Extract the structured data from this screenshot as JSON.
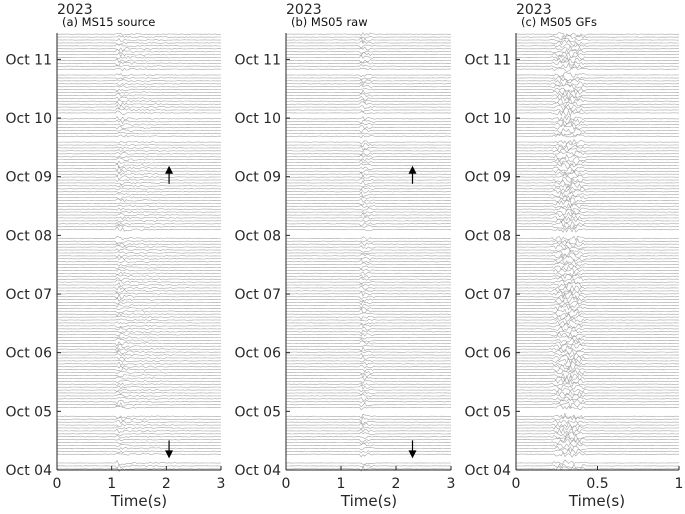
{
  "figure": {
    "background": "#ffffff",
    "trace_color": "#a6a6a6",
    "axis_color": "#262626",
    "arrow_color": "#000000"
  },
  "chart_data": [
    {
      "type": "line",
      "panel": "a",
      "title": "(a)   MS15 source",
      "year_label": "2023",
      "xlabel": "Time(s)",
      "xlim": [
        0,
        3
      ],
      "xticks": [
        "0",
        "1",
        "2",
        "3"
      ],
      "yticks": [
        "Oct 04",
        "Oct 05",
        "Oct 06",
        "Oct 07",
        "Oct 08",
        "Oct 09",
        "Oct 10",
        "Oct 11"
      ],
      "ylim_days": [
        0,
        7.45
      ],
      "arrival_time_s": 1.1,
      "signal_duration_s": 0.45,
      "arrows": [
        {
          "time_s": 2.05,
          "day": 5.05,
          "direction": "up"
        },
        {
          "time_s": 2.05,
          "day": 0.3,
          "direction": "down"
        }
      ],
      "gaps_days": [
        [
          0.15,
          0.23
        ],
        [
          0.95,
          1.05
        ],
        [
          3.95,
          4.07
        ],
        [
          5.6,
          5.66
        ],
        [
          6.0,
          6.06
        ],
        [
          6.75,
          6.8
        ]
      ]
    },
    {
      "type": "line",
      "panel": "b",
      "title": "(b)   MS05 raw",
      "year_label": "2023",
      "xlabel": "Time(s)",
      "xlim": [
        0,
        3
      ],
      "xticks": [
        "0",
        "1",
        "2",
        "3"
      ],
      "yticks": [
        "Oct 04",
        "Oct 05",
        "Oct 06",
        "Oct 07",
        "Oct 08",
        "Oct 09",
        "Oct 10",
        "Oct 11"
      ],
      "ylim_days": [
        0,
        7.45
      ],
      "arrival_time_s": 1.35,
      "signal_duration_s": 0.25,
      "arrows": [
        {
          "time_s": 2.3,
          "day": 5.05,
          "direction": "up"
        },
        {
          "time_s": 2.3,
          "day": 0.3,
          "direction": "down"
        }
      ],
      "gaps_days": [
        [
          0.15,
          0.23
        ],
        [
          0.95,
          1.05
        ],
        [
          3.95,
          4.07
        ],
        [
          5.6,
          5.66
        ],
        [
          6.0,
          6.06
        ],
        [
          6.75,
          6.8
        ]
      ]
    },
    {
      "type": "line",
      "panel": "c",
      "title": "(c)   MS05 GFs",
      "year_label": "2023",
      "xlabel": "Time(s)",
      "xlim": [
        0,
        1
      ],
      "xticks": [
        "0",
        "0.5",
        "1"
      ],
      "yticks": [
        "Oct 04",
        "Oct 05",
        "Oct 06",
        "Oct 07",
        "Oct 08",
        "Oct 09",
        "Oct 10",
        "Oct 11"
      ],
      "ylim_days": [
        0,
        7.45
      ],
      "arrival_time_s": 0.2,
      "signal_duration_s": 0.25,
      "arrows": [],
      "gaps_days": [
        [
          0.15,
          0.23
        ],
        [
          0.95,
          1.05
        ],
        [
          3.95,
          4.07
        ],
        [
          5.6,
          5.66
        ],
        [
          6.0,
          6.06
        ],
        [
          6.75,
          6.8
        ]
      ]
    }
  ]
}
